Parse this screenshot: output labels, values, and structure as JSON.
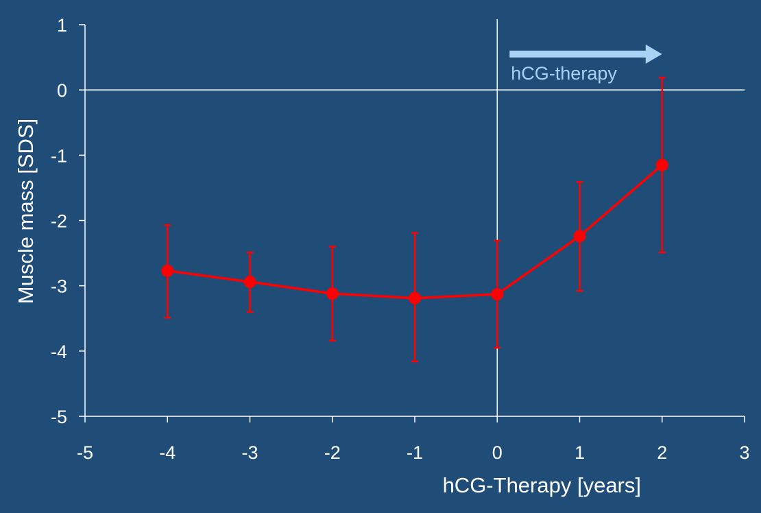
{
  "colors": {
    "background": "#204c78",
    "axis": "#ffffff",
    "series": "#ff0000",
    "annotation": "#a9d2f5"
  },
  "chart_data": {
    "type": "line",
    "xlabel": "hCG-Therapy [years]",
    "ylabel": "Muscle mass [SDS]",
    "xlim": [
      -5,
      3
    ],
    "ylim": [
      -5,
      1
    ],
    "xticks": [
      "-5",
      "-4",
      "-3",
      "-2",
      "-1",
      "0",
      "1",
      "2",
      "3"
    ],
    "yticks": [
      "-5",
      "-4",
      "-3",
      "-2",
      "-1",
      "0",
      "1"
    ],
    "grid": false,
    "reference_lines": {
      "x": 0,
      "y": 0
    },
    "annotation": {
      "text": "hCG-therapy",
      "arrow_from_x": 0.15,
      "arrow_to_x": 2.0,
      "arrow_y": 0.55
    },
    "series": [
      {
        "color": "#ff0000",
        "x": [
          -4,
          -3,
          -2,
          -1,
          0,
          1,
          2
        ],
        "y": [
          -2.77,
          -2.94,
          -3.12,
          -3.19,
          -3.13,
          -2.24,
          -1.15
        ],
        "error_low": [
          -3.49,
          -3.4,
          -3.84,
          -4.16,
          -3.95,
          -3.08,
          -2.49
        ],
        "error_high": [
          -2.07,
          -2.49,
          -2.4,
          -2.19,
          -2.31,
          -1.41,
          0.19
        ]
      }
    ]
  }
}
